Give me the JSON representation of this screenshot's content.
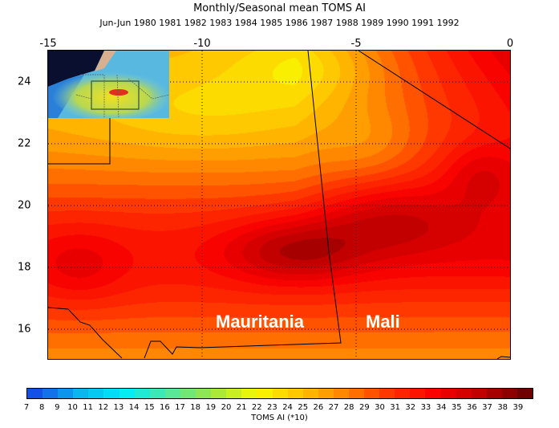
{
  "title": "Monthly/Seasonal mean TOMS AI",
  "subtitle": "Jun-Jun  1980 1981 1982 1983 1984 1985 1986 1987 1988 1989 1990 1991 1992",
  "map": {
    "lon_range": [
      -15,
      0
    ],
    "lat_range": [
      15,
      25
    ],
    "lon_ticks": [
      "-15",
      "-10",
      "-5",
      "0"
    ],
    "lat_ticks": [
      "24",
      "22",
      "20",
      "18",
      "16"
    ],
    "gridlines": "dotted",
    "country_labels": [
      "Mauritania",
      "Mali"
    ],
    "label_color": "#ffffff"
  },
  "colorbar": {
    "levels": [
      "7",
      "8",
      "9",
      "10",
      "11",
      "12",
      "13",
      "14",
      "15",
      "16",
      "17",
      "18",
      "19",
      "20",
      "21",
      "22",
      "23",
      "24",
      "25",
      "26",
      "27",
      "28",
      "29",
      "30",
      "31",
      "32",
      "33",
      "34",
      "35",
      "36",
      "37",
      "38",
      "39"
    ],
    "title": "TOMS AI (*10)",
    "color_stops": [
      "#1450e6",
      "#0ab4f0",
      "#00ecf8",
      "#50e8a0",
      "#a0e640",
      "#f8f800",
      "#ffc000",
      "#ff8000",
      "#ff3000",
      "#f80000",
      "#c00000",
      "#700000"
    ]
  }
}
